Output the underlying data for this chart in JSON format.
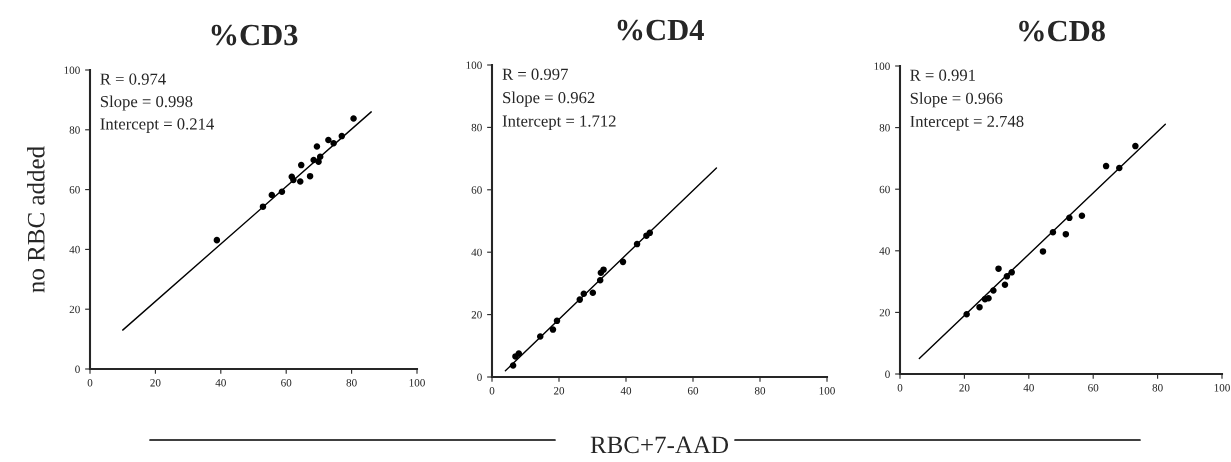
{
  "chart_data": [
    {
      "type": "scatter",
      "title": "%CD3",
      "ylabel": "no RBC added",
      "xlim": [
        0,
        100
      ],
      "ylim": [
        0,
        100
      ],
      "xticks": [
        0,
        20,
        40,
        60,
        80,
        100
      ],
      "yticks": [
        0,
        20,
        40,
        60,
        80,
        100
      ],
      "grid": false,
      "legend": false,
      "annotations": [
        "R = 0.974",
        "Slope = 0.998",
        "Intercept = 0.214"
      ],
      "series": [
        {
          "marker": "circle",
          "color": "#000000",
          "x": [
            38.8,
            52.9,
            55.6,
            58.7,
            61.7,
            62.2,
            64.3,
            64.6,
            67.3,
            69.4,
            68.4,
            69.9,
            70.4,
            72.9,
            74.5,
            77.0,
            80.6
          ],
          "values": [
            43.1,
            54.3,
            58.2,
            59.3,
            64.3,
            63.2,
            62.7,
            68.2,
            64.5,
            74.4,
            69.9,
            69.3,
            71.0,
            76.6,
            75.5,
            77.9,
            83.8
          ]
        },
        {
          "type": "line",
          "color": "#000000",
          "x": [
            10,
            86
          ],
          "values": [
            13,
            86
          ]
        }
      ]
    },
    {
      "type": "scatter",
      "title": "%CD4",
      "xlabel": "RBC+7-AAD",
      "xlim": [
        0,
        100
      ],
      "ylim": [
        0,
        100
      ],
      "xticks": [
        0,
        20,
        40,
        60,
        80,
        100
      ],
      "yticks": [
        0,
        20,
        40,
        60,
        80,
        100
      ],
      "grid": false,
      "legend": false,
      "annotations": [
        "R = 0.997",
        "Slope = 0.962",
        "Intercept = 1.712"
      ],
      "series": [
        {
          "marker": "circle",
          "color": "#000000",
          "x": [
            6.3,
            7.0,
            8.0,
            14.4,
            18.2,
            19.4,
            26.2,
            27.4,
            30.1,
            32.3,
            32.5,
            33.3,
            39.1,
            43.3,
            46.1,
            47.1
          ],
          "values": [
            3.7,
            6.6,
            7.5,
            13.0,
            15.2,
            18.0,
            24.8,
            26.7,
            27.0,
            31.0,
            33.4,
            34.4,
            36.9,
            42.6,
            45.3,
            46.2
          ]
        },
        {
          "type": "line",
          "color": "#000000",
          "x": [
            4,
            67
          ],
          "values": [
            2,
            67
          ]
        }
      ]
    },
    {
      "type": "scatter",
      "title": "%CD8",
      "xlim": [
        0,
        100
      ],
      "ylim": [
        0,
        100
      ],
      "xticks": [
        0,
        20,
        40,
        60,
        80,
        100
      ],
      "yticks": [
        0,
        20,
        40,
        60,
        80,
        100
      ],
      "grid": false,
      "legend": false,
      "annotations": [
        "R = 0.991",
        "Slope = 0.966",
        "Intercept = 2.748"
      ],
      "series": [
        {
          "marker": "circle",
          "color": "#000000",
          "x": [
            20.7,
            24.7,
            26.4,
            27.5,
            29.0,
            30.6,
            32.6,
            33.2,
            34.7,
            44.4,
            47.5,
            51.5,
            52.6,
            56.5,
            64.0,
            68.1,
            73.1
          ],
          "values": [
            19.4,
            21.7,
            24.3,
            24.6,
            27.1,
            34.2,
            29.0,
            31.7,
            33.0,
            39.8,
            46.0,
            45.4,
            50.7,
            51.4,
            67.5,
            66.9,
            74.0
          ]
        },
        {
          "type": "line",
          "color": "#000000",
          "x": [
            6,
            82.4
          ],
          "values": [
            5,
            81.1
          ]
        }
      ]
    }
  ]
}
